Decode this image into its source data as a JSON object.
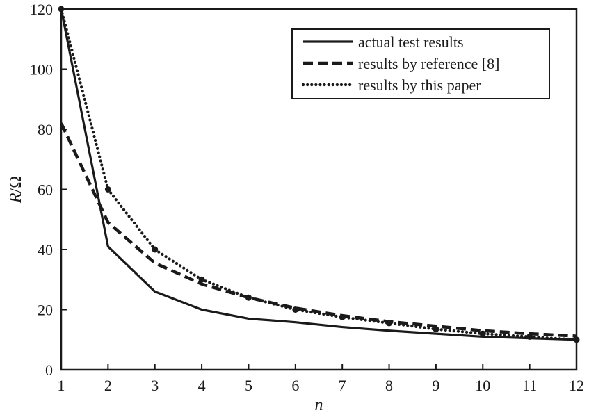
{
  "chart_data": {
    "type": "line",
    "title": "",
    "xlabel": "n",
    "ylabel_var": "R",
    "ylabel_unit": "/Ω",
    "x": [
      1,
      2,
      3,
      4,
      5,
      6,
      7,
      8,
      9,
      10,
      11,
      12
    ],
    "xlim": [
      1,
      12
    ],
    "ylim": [
      0,
      120
    ],
    "x_ticks": [
      "1",
      "2",
      "3",
      "4",
      "5",
      "6",
      "7",
      "8",
      "9",
      "10",
      "11",
      "12"
    ],
    "y_ticks": [
      "0",
      "20",
      "40",
      "60",
      "80",
      "100",
      "120"
    ],
    "grid": false,
    "legend_position": "top-right",
    "series": [
      {
        "name": "actual test results",
        "style": "solid",
        "values": [
          120,
          41,
          26,
          20,
          17,
          15.8,
          14.2,
          13,
          12,
          11,
          10.5,
          10
        ]
      },
      {
        "name": "results by reference [8]",
        "style": "dashed",
        "values": [
          82,
          49,
          35.5,
          28.5,
          24,
          20.5,
          18,
          16,
          14.5,
          13,
          12,
          11.2
        ]
      },
      {
        "name": "results by this paper",
        "style": "dotted",
        "values": [
          120,
          60,
          40,
          30,
          24,
          20,
          17.5,
          15.5,
          13.5,
          12,
          11,
          10
        ]
      }
    ],
    "colors": {
      "ink": "#1a1a1a",
      "background": "#ffffff"
    }
  }
}
